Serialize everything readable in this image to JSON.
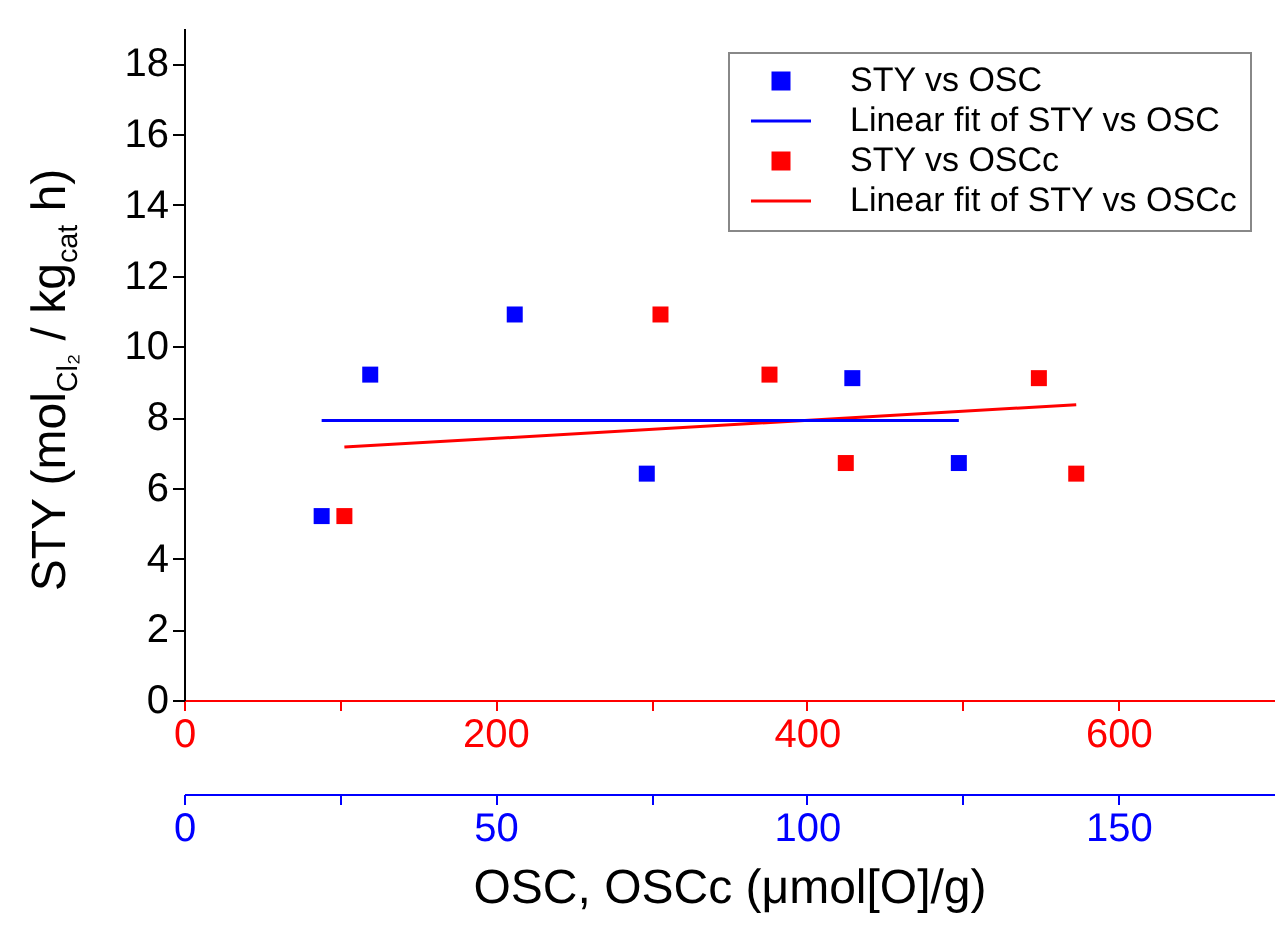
{
  "chart_data": {
    "type": "scatter",
    "xlabel": "OSC, OSCc (μmol[O]/g)",
    "ylabel": "STY (mol$_{Cl₂}$ / kg$_{cat}$ h)",
    "xlim": [
      0,
      700
    ],
    "xticks": [
      0,
      {
        "value": 100,
        "label": null
      },
      200,
      {
        "value": 300,
        "label": null
      },
      400,
      {
        "value": 500,
        "label": null
      },
      600
    ],
    "x2lim": [
      0,
      175
    ],
    "x2ticks": [
      0,
      {
        "value": 25,
        "label": null
      },
      50,
      {
        "value": 75,
        "label": null
      },
      100,
      {
        "value": 125,
        "label": null
      },
      150
    ],
    "ylim": [
      0,
      19
    ],
    "yticks": [
      0,
      2,
      4,
      6,
      8,
      10,
      12,
      14,
      16,
      18
    ],
    "legend": "top right",
    "series": [
      {
        "name": "STY vs OSC",
        "marker": "square",
        "axis": "x2",
        "color": "#0000ff",
        "x": [
          22.1,
          29.9,
          53.1,
          74.3,
          107.3,
          124.4
        ],
        "values": [
          5.2,
          9.2,
          10.9,
          6.4,
          9.1,
          6.7
        ]
      },
      {
        "name": "Linear fit of STY vs OSC",
        "type": "line",
        "axis": "x2",
        "color": "#0000ff",
        "x": [
          22.1,
          124.4
        ],
        "values": [
          7.9,
          7.9
        ]
      },
      {
        "name": "STY vs OSCc",
        "marker": "square",
        "color": "#ff0000",
        "x": [
          103,
          306,
          376,
          425,
          549,
          573
        ],
        "values": [
          5.2,
          10.9,
          9.2,
          6.7,
          9.1,
          6.4
        ]
      },
      {
        "name": "Linear fit of STY vs OSCc",
        "type": "line",
        "color": "#ff0000",
        "x": [
          103,
          573
        ],
        "values": [
          7.15,
          8.35
        ]
      }
    ]
  }
}
